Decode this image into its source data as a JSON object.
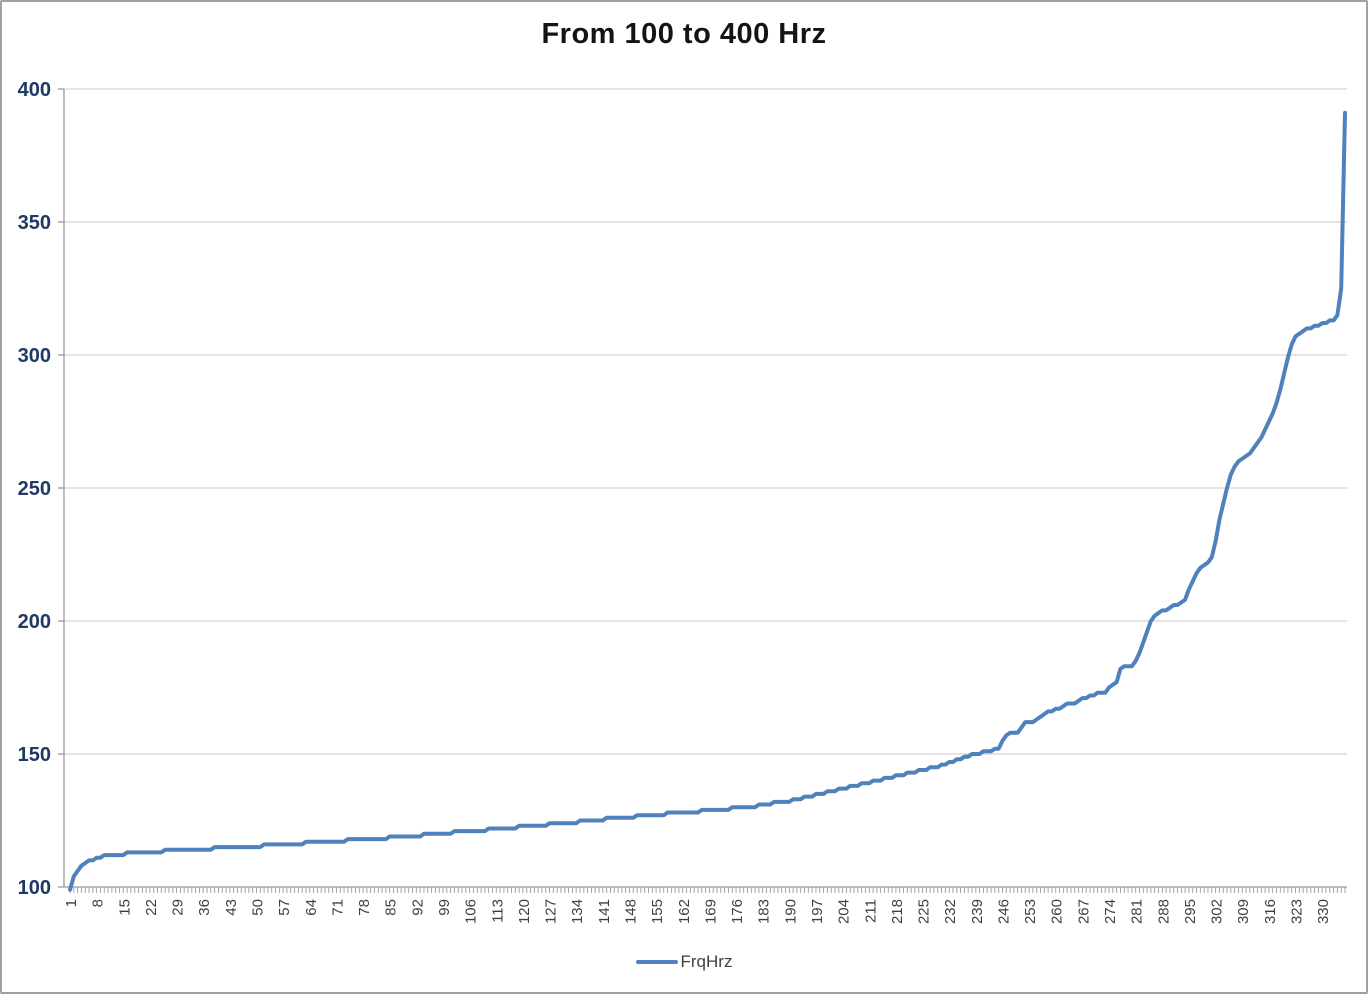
{
  "chart_data": {
    "type": "line",
    "title": "From 100 to 400 Hrz",
    "xlabel": "",
    "ylabel": "",
    "ylim": [
      100,
      400
    ],
    "y_ticks": [
      100,
      150,
      200,
      250,
      300,
      350,
      400
    ],
    "x_tick_step": 7,
    "x_tick_labels": [
      "1",
      "8",
      "15",
      "22",
      "29",
      "36",
      "43",
      "50",
      "57",
      "64",
      "71",
      "78",
      "85",
      "92",
      "99",
      "106",
      "113",
      "120",
      "127",
      "134",
      "141",
      "148",
      "155",
      "162",
      "169",
      "176",
      "183",
      "190",
      "197",
      "204",
      "211",
      "218",
      "225",
      "232",
      "239",
      "246",
      "253",
      "260",
      "267",
      "274",
      "281",
      "288",
      "295",
      "302",
      "309",
      "316",
      "323",
      "330"
    ],
    "grid": "horizontal",
    "legend_position": "bottom",
    "colors": {
      "series": "#4F81BD",
      "y_axis_labels": "#1F3864",
      "x_axis_labels": "#3F3F3F",
      "gridline": "#C9C9C9",
      "axis_line": "#9A9A9A",
      "title": "#141414",
      "background": "#FFFFFF",
      "frame_border": "#A0A0A0"
    },
    "series": [
      {
        "name": "FrqHrz",
        "values": [
          99,
          104,
          106,
          108,
          109,
          110,
          110,
          111,
          111,
          112,
          112,
          112,
          112,
          112,
          112,
          113,
          113,
          113,
          113,
          113,
          113,
          113,
          113,
          113,
          113,
          114,
          114,
          114,
          114,
          114,
          114,
          114,
          114,
          114,
          114,
          114,
          114,
          114,
          115,
          115,
          115,
          115,
          115,
          115,
          115,
          115,
          115,
          115,
          115,
          115,
          115,
          116,
          116,
          116,
          116,
          116,
          116,
          116,
          116,
          116,
          116,
          116,
          117,
          117,
          117,
          117,
          117,
          117,
          117,
          117,
          117,
          117,
          117,
          118,
          118,
          118,
          118,
          118,
          118,
          118,
          118,
          118,
          118,
          118,
          119,
          119,
          119,
          119,
          119,
          119,
          119,
          119,
          119,
          120,
          120,
          120,
          120,
          120,
          120,
          120,
          120,
          121,
          121,
          121,
          121,
          121,
          121,
          121,
          121,
          121,
          122,
          122,
          122,
          122,
          122,
          122,
          122,
          122,
          123,
          123,
          123,
          123,
          123,
          123,
          123,
          123,
          124,
          124,
          124,
          124,
          124,
          124,
          124,
          124,
          125,
          125,
          125,
          125,
          125,
          125,
          125,
          126,
          126,
          126,
          126,
          126,
          126,
          126,
          126,
          127,
          127,
          127,
          127,
          127,
          127,
          127,
          127,
          128,
          128,
          128,
          128,
          128,
          128,
          128,
          128,
          128,
          129,
          129,
          129,
          129,
          129,
          129,
          129,
          129,
          130,
          130,
          130,
          130,
          130,
          130,
          130,
          131,
          131,
          131,
          131,
          132,
          132,
          132,
          132,
          132,
          133,
          133,
          133,
          134,
          134,
          134,
          135,
          135,
          135,
          136,
          136,
          136,
          137,
          137,
          137,
          138,
          138,
          138,
          139,
          139,
          139,
          140,
          140,
          140,
          141,
          141,
          141,
          142,
          142,
          142,
          143,
          143,
          143,
          144,
          144,
          144,
          145,
          145,
          145,
          146,
          146,
          147,
          147,
          148,
          148,
          149,
          149,
          150,
          150,
          150,
          151,
          151,
          151,
          152,
          152,
          155,
          157,
          158,
          158,
          158,
          160,
          162,
          162,
          162,
          163,
          164,
          165,
          166,
          166,
          167,
          167,
          168,
          169,
          169,
          169,
          170,
          171,
          171,
          172,
          172,
          173,
          173,
          173,
          175,
          176,
          177,
          182,
          183,
          183,
          183,
          185,
          188,
          192,
          196,
          200,
          202,
          203,
          204,
          204,
          205,
          206,
          206,
          207,
          208,
          212,
          215,
          218,
          220,
          221,
          222,
          224,
          230,
          238,
          244,
          250,
          255,
          258,
          260,
          261,
          262,
          263,
          265,
          267,
          269,
          272,
          275,
          278,
          282,
          287,
          293,
          299,
          304,
          307,
          308,
          309,
          310,
          310,
          311,
          311,
          312,
          312,
          313,
          313,
          315,
          325,
          391
        ]
      }
    ]
  },
  "legend": {
    "label": "FrqHrz"
  }
}
